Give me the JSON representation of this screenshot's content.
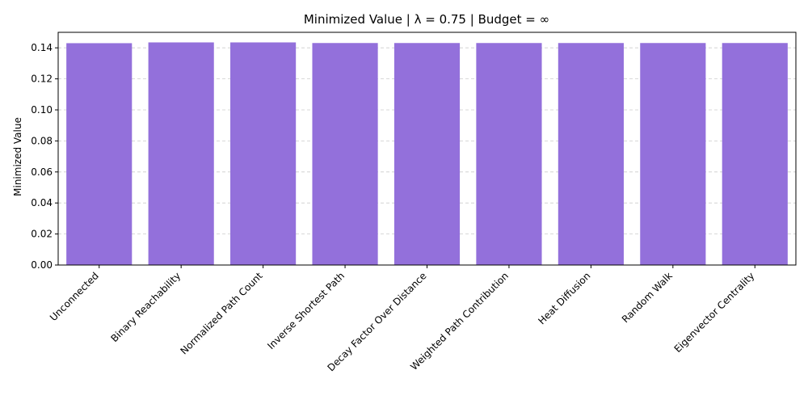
{
  "chart_data": {
    "type": "bar",
    "title": "Minimized Value | λ = 0.75 | Budget = ∞",
    "xlabel": "",
    "ylabel": "Minimized Value",
    "categories": [
      "Unconnected",
      "Binary Reachability",
      "Normalized Path Count",
      "Inverse Shortest Path",
      "Decay Factor Over Distance",
      "Weighted Path Contribution",
      "Heat Diffusion",
      "Random Walk",
      "Eigenvector Centrality"
    ],
    "values": [
      0.143,
      0.1435,
      0.1435,
      0.1431,
      0.1431,
      0.1431,
      0.1431,
      0.1431,
      0.1431
    ],
    "ylim": [
      0,
      0.15
    ],
    "yticks": [
      "0.00",
      "0.02",
      "0.04",
      "0.06",
      "0.08",
      "0.10",
      "0.12",
      "0.14"
    ],
    "bar_color": "#9370db",
    "grid": "y-dashed",
    "legend": "none"
  }
}
